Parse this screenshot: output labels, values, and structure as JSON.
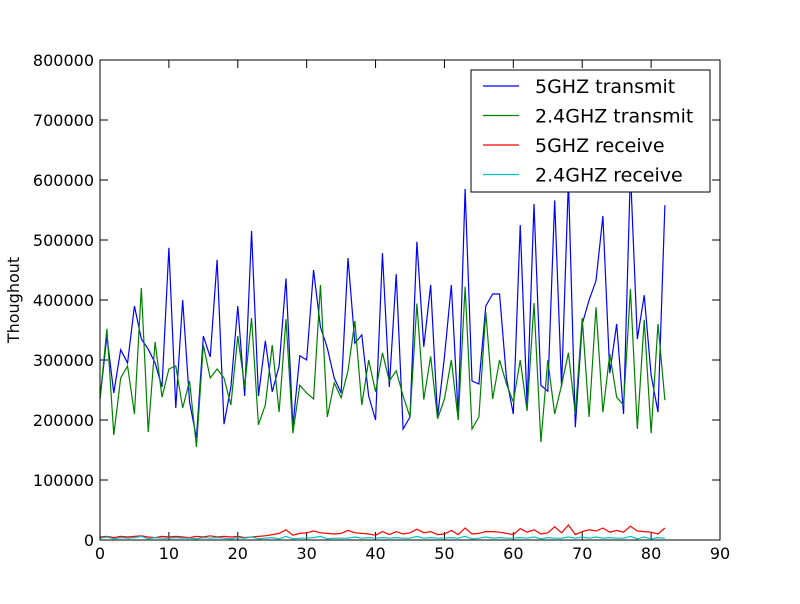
{
  "chart_data": {
    "type": "line",
    "title": "",
    "xlabel": "",
    "ylabel": "Thoughout",
    "xlim": [
      0,
      90
    ],
    "ylim": [
      0,
      800000
    ],
    "x_ticks": [
      "0",
      "10",
      "20",
      "30",
      "40",
      "50",
      "60",
      "70",
      "80",
      "90"
    ],
    "y_ticks": [
      "0",
      "100000",
      "200000",
      "300000",
      "400000",
      "500000",
      "600000",
      "700000",
      "800000"
    ],
    "grid": false,
    "legend_position": "top-right",
    "x": [
      0,
      1,
      2,
      3,
      4,
      5,
      6,
      7,
      8,
      9,
      10,
      11,
      12,
      13,
      14,
      15,
      16,
      17,
      18,
      19,
      20,
      21,
      22,
      23,
      24,
      25,
      26,
      27,
      28,
      29,
      30,
      31,
      32,
      33,
      34,
      35,
      36,
      37,
      38,
      39,
      40,
      41,
      42,
      43,
      44,
      45,
      46,
      47,
      48,
      49,
      50,
      51,
      52,
      53,
      54,
      55,
      56,
      57,
      58,
      59,
      60,
      61,
      62,
      63,
      64,
      65,
      66,
      67,
      68,
      69,
      70,
      71,
      72,
      73,
      74,
      75,
      76,
      77,
      78,
      79,
      80,
      81,
      82
    ],
    "series": [
      {
        "name": "5GHZ transmit",
        "color": "#0000ff",
        "values": [
          235000,
          340000,
          245000,
          317000,
          295000,
          390000,
          335000,
          318000,
          295000,
          255000,
          487000,
          220000,
          400000,
          230000,
          170000,
          340000,
          305000,
          467000,
          193000,
          255000,
          390000,
          240000,
          515000,
          240000,
          332000,
          247000,
          290000,
          436000,
          190000,
          307000,
          300000,
          450000,
          355000,
          320000,
          270000,
          245000,
          470000,
          328000,
          342000,
          240000,
          200000,
          478000,
          255000,
          443000,
          185000,
          205000,
          497000,
          322000,
          425000,
          205000,
          305000,
          425000,
          207000,
          585000,
          265000,
          260000,
          390000,
          410000,
          410000,
          270000,
          210000,
          525000,
          225000,
          560000,
          258000,
          248000,
          566000,
          255000,
          600000,
          188000,
          360000,
          400000,
          432000,
          540000,
          278000,
          360000,
          210000,
          615000,
          335000,
          408000,
          275000,
          213000,
          558000
        ]
      },
      {
        "name": "2.4GHZ transmit",
        "color": "#008000",
        "values": [
          235000,
          352000,
          175000,
          270000,
          290000,
          210000,
          420000,
          180000,
          330000,
          238000,
          285000,
          290000,
          220000,
          265000,
          155000,
          325000,
          270000,
          285000,
          270000,
          225000,
          340000,
          255000,
          370000,
          192000,
          225000,
          325000,
          213000,
          368000,
          178000,
          258000,
          245000,
          235000,
          425000,
          205000,
          262000,
          237000,
          282000,
          365000,
          225000,
          300000,
          247000,
          312000,
          265000,
          282000,
          240000,
          205000,
          394000,
          234000,
          306000,
          202000,
          235000,
          300000,
          200000,
          422000,
          185000,
          205000,
          380000,
          235000,
          300000,
          260000,
          230000,
          300000,
          215000,
          395000,
          163000,
          300000,
          210000,
          258000,
          312000,
          210000,
          370000,
          205000,
          388000,
          213000,
          310000,
          238000,
          225000,
          418000,
          185000,
          367000,
          178000,
          360000,
          233000
        ]
      },
      {
        "name": "5GHZ receive",
        "color": "#ff0000",
        "values": [
          5000,
          6000,
          4000,
          6000,
          5000,
          6000,
          7000,
          5000,
          4000,
          6000,
          5000,
          6000,
          5000,
          4000,
          6000,
          5000,
          7000,
          5000,
          6000,
          5000,
          6000,
          4000,
          5000,
          6000,
          7000,
          9000,
          11000,
          17000,
          8000,
          11000,
          12000,
          15000,
          12000,
          11000,
          10000,
          11000,
          16000,
          12000,
          11000,
          10000,
          8000,
          14000,
          9000,
          14000,
          10000,
          12000,
          18000,
          12000,
          14000,
          9000,
          10000,
          16000,
          9000,
          20000,
          10000,
          11000,
          14000,
          14000,
          13000,
          11000,
          9000,
          19000,
          13000,
          17000,
          10000,
          12000,
          22000,
          12000,
          25000,
          9000,
          14000,
          17000,
          15000,
          20000,
          13000,
          16000,
          13000,
          23000,
          15000,
          14000,
          13000,
          10000,
          20000
        ]
      },
      {
        "name": "2.4GHZ receive",
        "color": "#00bfbf",
        "values": [
          3000,
          5000,
          2000,
          4000,
          3000,
          4000,
          6000,
          2000,
          4000,
          3000,
          3000,
          4000,
          3000,
          3000,
          2000,
          4000,
          3000,
          4000,
          3000,
          2000,
          4000,
          3000,
          5000,
          2000,
          3000,
          4000,
          2000,
          6000,
          2000,
          3000,
          3000,
          4000,
          6000,
          2000,
          3000,
          3000,
          3000,
          5000,
          3000,
          4000,
          3000,
          4000,
          3000,
          4000,
          3000,
          3000,
          6000,
          3000,
          4000,
          3000,
          3000,
          4000,
          3000,
          6000,
          2000,
          3000,
          5000,
          3000,
          4000,
          3000,
          3000,
          4000,
          3000,
          5000,
          2000,
          4000,
          3000,
          3000,
          5000,
          3000,
          5000,
          3000,
          5000,
          3000,
          4000,
          3000,
          3000,
          6000,
          2000,
          5000,
          2000,
          4000,
          3000
        ]
      }
    ]
  }
}
